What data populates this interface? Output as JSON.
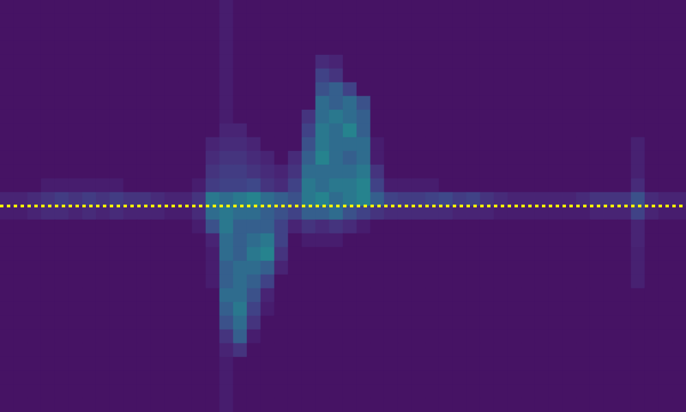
{
  "chart_data": {
    "type": "heatmap",
    "tick_labels": false,
    "xlim": [
      0,
      50
    ],
    "ylim": [
      0,
      30
    ],
    "color_range": [
      0,
      100
    ],
    "reference_line": {
      "y": 15,
      "color": "#ffff00",
      "line_style": "dotted"
    },
    "cells": [
      [
        5,
        5,
        5,
        5,
        5,
        5,
        5,
        5,
        5,
        5,
        5,
        5,
        5,
        5,
        5,
        5,
        8,
        5,
        5,
        5,
        5,
        5,
        5,
        5,
        5,
        5,
        5,
        5,
        5,
        5,
        5,
        5,
        5,
        5,
        5,
        5,
        5,
        5,
        5,
        5,
        5,
        5,
        5,
        5,
        5,
        5,
        5,
        5,
        5,
        5
      ],
      [
        5,
        5,
        5,
        5,
        5,
        5,
        5,
        5,
        5,
        5,
        5,
        5,
        5,
        5,
        5,
        5,
        8,
        5,
        5,
        5,
        5,
        5,
        5,
        5,
        5,
        5,
        5,
        5,
        5,
        5,
        5,
        5,
        5,
        5,
        5,
        5,
        5,
        5,
        5,
        5,
        5,
        5,
        5,
        5,
        5,
        5,
        5,
        5,
        5,
        5
      ],
      [
        5,
        5,
        5,
        5,
        5,
        5,
        5,
        5,
        5,
        5,
        5,
        5,
        5,
        5,
        5,
        5,
        8,
        5,
        5,
        5,
        5,
        5,
        5,
        5,
        5,
        5,
        5,
        5,
        5,
        5,
        5,
        5,
        5,
        5,
        5,
        5,
        5,
        5,
        5,
        5,
        5,
        5,
        5,
        5,
        5,
        5,
        5,
        5,
        5,
        5
      ],
      [
        5,
        5,
        5,
        5,
        5,
        5,
        5,
        5,
        5,
        5,
        5,
        5,
        5,
        5,
        5,
        5,
        8,
        5,
        5,
        5,
        5,
        5,
        5,
        5,
        5,
        5,
        5,
        5,
        5,
        5,
        5,
        5,
        5,
        5,
        5,
        5,
        5,
        5,
        5,
        5,
        5,
        5,
        5,
        5,
        5,
        5,
        5,
        5,
        5,
        5
      ],
      [
        5,
        5,
        5,
        5,
        5,
        5,
        5,
        5,
        5,
        5,
        5,
        5,
        5,
        5,
        5,
        5,
        8,
        5,
        5,
        5,
        5,
        5,
        5,
        12,
        10,
        5,
        5,
        5,
        5,
        5,
        5,
        5,
        5,
        5,
        5,
        5,
        5,
        5,
        5,
        5,
        5,
        5,
        5,
        5,
        5,
        5,
        5,
        5,
        5,
        5
      ],
      [
        5,
        5,
        5,
        5,
        5,
        5,
        5,
        5,
        5,
        5,
        5,
        5,
        5,
        5,
        5,
        5,
        8,
        5,
        5,
        5,
        5,
        5,
        5,
        20,
        15,
        5,
        5,
        5,
        5,
        5,
        5,
        5,
        5,
        5,
        5,
        5,
        5,
        5,
        5,
        5,
        5,
        5,
        5,
        5,
        5,
        5,
        5,
        5,
        5,
        5
      ],
      [
        5,
        5,
        5,
        5,
        5,
        5,
        5,
        5,
        5,
        5,
        5,
        5,
        5,
        5,
        5,
        5,
        8,
        5,
        5,
        5,
        5,
        5,
        5,
        25,
        30,
        20,
        5,
        5,
        5,
        5,
        5,
        5,
        5,
        5,
        5,
        5,
        5,
        5,
        5,
        5,
        5,
        5,
        5,
        5,
        5,
        5,
        5,
        5,
        5,
        5
      ],
      [
        5,
        5,
        5,
        5,
        5,
        5,
        5,
        5,
        5,
        5,
        5,
        5,
        5,
        5,
        5,
        5,
        8,
        5,
        5,
        5,
        5,
        5,
        5,
        35,
        30,
        35,
        25,
        5,
        5,
        5,
        5,
        5,
        5,
        5,
        5,
        5,
        5,
        5,
        5,
        5,
        5,
        5,
        5,
        5,
        5,
        5,
        5,
        5,
        5,
        5
      ],
      [
        5,
        5,
        5,
        5,
        5,
        5,
        5,
        5,
        5,
        5,
        5,
        5,
        5,
        5,
        5,
        5,
        8,
        5,
        5,
        5,
        5,
        5,
        15,
        35,
        40,
        35,
        30,
        5,
        5,
        5,
        5,
        5,
        5,
        5,
        5,
        5,
        5,
        5,
        5,
        5,
        5,
        5,
        5,
        5,
        5,
        5,
        5,
        5,
        5,
        5
      ],
      [
        5,
        5,
        5,
        5,
        5,
        5,
        5,
        5,
        5,
        5,
        5,
        5,
        5,
        5,
        5,
        5,
        10,
        10,
        5,
        5,
        5,
        5,
        20,
        40,
        35,
        45,
        30,
        5,
        5,
        5,
        5,
        5,
        5,
        5,
        5,
        5,
        5,
        5,
        5,
        5,
        5,
        5,
        5,
        5,
        5,
        5,
        5,
        5,
        5,
        5
      ],
      [
        5,
        5,
        5,
        5,
        5,
        5,
        5,
        5,
        5,
        5,
        5,
        5,
        5,
        5,
        5,
        10,
        12,
        12,
        10,
        5,
        5,
        5,
        25,
        40,
        35,
        35,
        35,
        8,
        5,
        5,
        5,
        5,
        5,
        5,
        5,
        5,
        5,
        5,
        5,
        5,
        5,
        5,
        5,
        5,
        5,
        5,
        9,
        5,
        5,
        5
      ],
      [
        5,
        5,
        5,
        5,
        5,
        5,
        5,
        5,
        5,
        5,
        5,
        5,
        5,
        5,
        5,
        12,
        15,
        15,
        12,
        10,
        5,
        12,
        30,
        45,
        35,
        30,
        35,
        8,
        5,
        5,
        5,
        5,
        5,
        5,
        5,
        5,
        5,
        5,
        5,
        5,
        5,
        5,
        5,
        5,
        5,
        5,
        9,
        5,
        5,
        5
      ],
      [
        5,
        5,
        5,
        5,
        5,
        5,
        5,
        5,
        5,
        5,
        5,
        5,
        5,
        5,
        5,
        15,
        18,
        18,
        15,
        12,
        10,
        15,
        35,
        35,
        35,
        35,
        40,
        15,
        5,
        5,
        5,
        5,
        5,
        5,
        5,
        5,
        5,
        5,
        5,
        5,
        5,
        5,
        5,
        5,
        5,
        5,
        9,
        5,
        5,
        5
      ],
      [
        5,
        5,
        5,
        8,
        8,
        8,
        8,
        8,
        8,
        5,
        5,
        5,
        5,
        5,
        8,
        18,
        20,
        20,
        22,
        15,
        12,
        20,
        40,
        35,
        40,
        40,
        45,
        20,
        8,
        8,
        8,
        8,
        5,
        5,
        5,
        5,
        5,
        5,
        5,
        5,
        5,
        5,
        5,
        5,
        5,
        5,
        12,
        5,
        5,
        5
      ],
      [
        10,
        10,
        12,
        15,
        18,
        15,
        18,
        15,
        18,
        15,
        15,
        12,
        10,
        10,
        15,
        40,
        35,
        40,
        45,
        35,
        30,
        25,
        40,
        45,
        35,
        40,
        45,
        30,
        20,
        18,
        18,
        20,
        22,
        18,
        20,
        15,
        12,
        10,
        10,
        10,
        10,
        10,
        12,
        15,
        15,
        15,
        25,
        12,
        10,
        10
      ],
      [
        8,
        8,
        10,
        12,
        12,
        10,
        12,
        10,
        12,
        10,
        10,
        10,
        8,
        8,
        12,
        35,
        40,
        35,
        35,
        30,
        25,
        20,
        30,
        30,
        35,
        25,
        20,
        15,
        12,
        12,
        12,
        12,
        12,
        10,
        10,
        10,
        8,
        8,
        8,
        8,
        8,
        8,
        8,
        10,
        10,
        10,
        20,
        10,
        8,
        8
      ],
      [
        5,
        5,
        5,
        5,
        5,
        5,
        5,
        5,
        5,
        5,
        5,
        5,
        5,
        5,
        8,
        25,
        40,
        30,
        30,
        30,
        20,
        10,
        15,
        12,
        15,
        12,
        8,
        5,
        5,
        5,
        5,
        5,
        5,
        5,
        5,
        5,
        5,
        5,
        5,
        5,
        5,
        5,
        5,
        5,
        5,
        5,
        10,
        5,
        5,
        5
      ],
      [
        5,
        5,
        5,
        5,
        5,
        5,
        5,
        5,
        5,
        5,
        5,
        5,
        5,
        5,
        5,
        10,
        35,
        30,
        35,
        40,
        20,
        5,
        8,
        8,
        8,
        5,
        5,
        5,
        5,
        5,
        5,
        5,
        5,
        5,
        5,
        5,
        5,
        5,
        5,
        5,
        5,
        5,
        5,
        5,
        5,
        5,
        10,
        5,
        5,
        5
      ],
      [
        5,
        5,
        5,
        5,
        5,
        5,
        5,
        5,
        5,
        5,
        5,
        5,
        5,
        5,
        5,
        8,
        35,
        30,
        40,
        45,
        15,
        5,
        5,
        5,
        5,
        5,
        5,
        5,
        5,
        5,
        5,
        5,
        5,
        5,
        5,
        5,
        5,
        5,
        5,
        5,
        5,
        5,
        5,
        5,
        5,
        5,
        9,
        5,
        5,
        5
      ],
      [
        5,
        5,
        5,
        5,
        5,
        5,
        5,
        5,
        5,
        5,
        5,
        5,
        5,
        5,
        5,
        8,
        30,
        35,
        35,
        30,
        10,
        5,
        5,
        5,
        5,
        5,
        5,
        5,
        5,
        5,
        5,
        5,
        5,
        5,
        5,
        5,
        5,
        5,
        5,
        5,
        5,
        5,
        5,
        5,
        5,
        5,
        9,
        5,
        5,
        5
      ],
      [
        5,
        5,
        5,
        5,
        5,
        5,
        5,
        5,
        5,
        5,
        5,
        5,
        5,
        5,
        5,
        8,
        30,
        35,
        30,
        20,
        5,
        5,
        5,
        5,
        5,
        5,
        5,
        5,
        5,
        5,
        5,
        5,
        5,
        5,
        5,
        5,
        5,
        5,
        5,
        5,
        5,
        5,
        5,
        5,
        5,
        5,
        9,
        5,
        5,
        5
      ],
      [
        5,
        5,
        5,
        5,
        5,
        5,
        5,
        5,
        5,
        5,
        5,
        5,
        5,
        5,
        5,
        5,
        35,
        35,
        25,
        10,
        5,
        5,
        5,
        5,
        5,
        5,
        5,
        5,
        5,
        5,
        5,
        5,
        5,
        5,
        5,
        5,
        5,
        5,
        5,
        5,
        5,
        5,
        5,
        5,
        5,
        5,
        5,
        5,
        5,
        5
      ],
      [
        5,
        5,
        5,
        5,
        5,
        5,
        5,
        5,
        5,
        5,
        5,
        5,
        5,
        5,
        5,
        5,
        30,
        40,
        20,
        8,
        5,
        5,
        5,
        5,
        5,
        5,
        5,
        5,
        5,
        5,
        5,
        5,
        5,
        5,
        5,
        5,
        5,
        5,
        5,
        5,
        5,
        5,
        5,
        5,
        5,
        5,
        5,
        5,
        5,
        5
      ],
      [
        5,
        5,
        5,
        5,
        5,
        5,
        5,
        5,
        5,
        5,
        5,
        5,
        5,
        5,
        5,
        5,
        25,
        35,
        15,
        5,
        5,
        5,
        5,
        5,
        5,
        5,
        5,
        5,
        5,
        5,
        5,
        5,
        5,
        5,
        5,
        5,
        5,
        5,
        5,
        5,
        5,
        5,
        5,
        5,
        5,
        5,
        5,
        5,
        5,
        5
      ],
      [
        5,
        5,
        5,
        5,
        5,
        5,
        5,
        5,
        5,
        5,
        5,
        5,
        5,
        5,
        5,
        5,
        15,
        30,
        8,
        5,
        5,
        5,
        5,
        5,
        5,
        5,
        5,
        5,
        5,
        5,
        5,
        5,
        5,
        5,
        5,
        5,
        5,
        5,
        5,
        5,
        5,
        5,
        5,
        5,
        5,
        5,
        5,
        5,
        5,
        5
      ],
      [
        5,
        5,
        5,
        5,
        5,
        5,
        5,
        5,
        5,
        5,
        5,
        5,
        5,
        5,
        5,
        5,
        10,
        15,
        5,
        5,
        5,
        5,
        5,
        5,
        5,
        5,
        5,
        5,
        5,
        5,
        5,
        5,
        5,
        5,
        5,
        5,
        5,
        5,
        5,
        5,
        5,
        5,
        5,
        5,
        5,
        5,
        5,
        5,
        5,
        5
      ],
      [
        5,
        5,
        5,
        5,
        5,
        5,
        5,
        5,
        5,
        5,
        5,
        5,
        5,
        5,
        5,
        5,
        8,
        5,
        5,
        5,
        5,
        5,
        5,
        5,
        5,
        5,
        5,
        5,
        5,
        5,
        5,
        5,
        5,
        5,
        5,
        5,
        5,
        5,
        5,
        5,
        5,
        5,
        5,
        5,
        5,
        5,
        5,
        5,
        5,
        5
      ],
      [
        5,
        5,
        5,
        5,
        5,
        5,
        5,
        5,
        5,
        5,
        5,
        5,
        5,
        5,
        5,
        5,
        8,
        5,
        5,
        5,
        5,
        5,
        5,
        5,
        5,
        5,
        5,
        5,
        5,
        5,
        5,
        5,
        5,
        5,
        5,
        5,
        5,
        5,
        5,
        5,
        5,
        5,
        5,
        5,
        5,
        5,
        5,
        5,
        5,
        5
      ],
      [
        5,
        5,
        5,
        5,
        5,
        5,
        5,
        5,
        5,
        5,
        5,
        5,
        5,
        5,
        5,
        5,
        8,
        5,
        5,
        5,
        5,
        5,
        5,
        5,
        5,
        5,
        5,
        5,
        5,
        5,
        5,
        5,
        5,
        5,
        5,
        5,
        5,
        5,
        5,
        5,
        5,
        5,
        5,
        5,
        5,
        5,
        5,
        5,
        5,
        5
      ],
      [
        5,
        5,
        5,
        5,
        5,
        5,
        5,
        5,
        5,
        5,
        5,
        5,
        5,
        5,
        5,
        5,
        8,
        5,
        5,
        5,
        5,
        5,
        5,
        5,
        5,
        5,
        5,
        5,
        5,
        5,
        5,
        5,
        5,
        5,
        5,
        5,
        5,
        5,
        5,
        5,
        5,
        5,
        5,
        5,
        5,
        5,
        5,
        5,
        5,
        5
      ]
    ]
  }
}
